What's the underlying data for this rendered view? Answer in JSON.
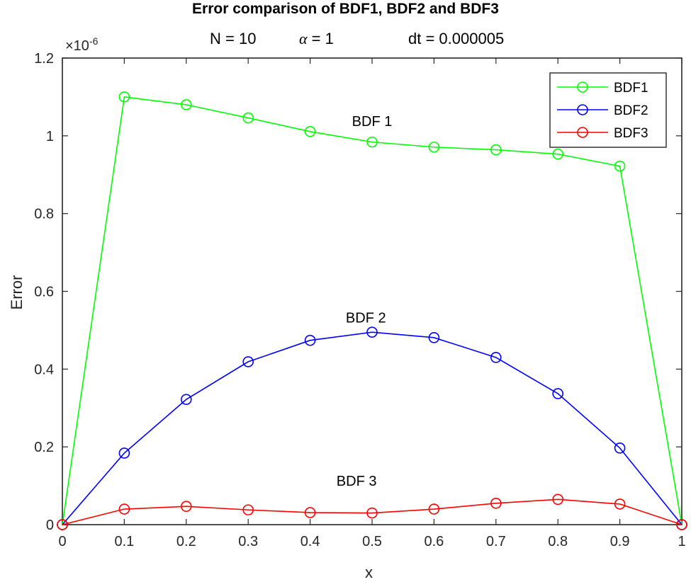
{
  "title": "Error comparison of BDF1, BDF2 and BDF3",
  "subtitle": {
    "n": "N = 10",
    "alpha_symbol": "α",
    "alpha_value": " = 1",
    "dt": "dt = 0.000005"
  },
  "y_exponent": {
    "base": "×10",
    "power": "-6"
  },
  "colors": {
    "BDF1": "#00ff00",
    "BDF2": "#0000ff",
    "BDF3": "#ff0000",
    "axis": "#262626"
  },
  "chart_data": {
    "type": "line",
    "title": "Error comparison of BDF1, BDF2 and BDF3",
    "subtitle": "N = 10    α = 1    dt = 0.000005",
    "xlabel": "x",
    "ylabel": "Error",
    "y_scale_factor": "×10^-6",
    "xlim": [
      0,
      1
    ],
    "ylim": [
      0,
      1.2
    ],
    "x_ticks": [
      "0",
      "0.1",
      "0.2",
      "0.3",
      "0.4",
      "0.5",
      "0.6",
      "0.7",
      "0.8",
      "0.9",
      "1"
    ],
    "y_ticks": [
      "0",
      "0.2",
      "0.4",
      "0.6",
      "0.8",
      "1",
      "1.2"
    ],
    "grid": false,
    "legend_position": "northeast",
    "marker": "circle",
    "x": [
      0,
      0.1,
      0.2,
      0.3,
      0.4,
      0.5,
      0.6,
      0.7,
      0.8,
      0.9,
      1.0
    ],
    "series": [
      {
        "name": "BDF1",
        "color": "#00ff00",
        "values": [
          0,
          1.1,
          1.08,
          1.046,
          1.011,
          0.984,
          0.971,
          0.964,
          0.953,
          0.922,
          0
        ]
      },
      {
        "name": "BDF2",
        "color": "#0000ff",
        "values": [
          0,
          0.184,
          0.322,
          0.419,
          0.474,
          0.495,
          0.481,
          0.43,
          0.337,
          0.197,
          0
        ]
      },
      {
        "name": "BDF3",
        "color": "#ff0000",
        "values": [
          0,
          0.04,
          0.047,
          0.038,
          0.031,
          0.03,
          0.04,
          0.055,
          0.065,
          0.053,
          0
        ]
      }
    ],
    "annotations": [
      {
        "text": "BDF 1",
        "x": 0.5,
        "y": 1.025
      },
      {
        "text": "BDF 2",
        "x": 0.49,
        "y": 0.52
      },
      {
        "text": "BDF 3",
        "x": 0.475,
        "y": 0.1
      }
    ]
  }
}
